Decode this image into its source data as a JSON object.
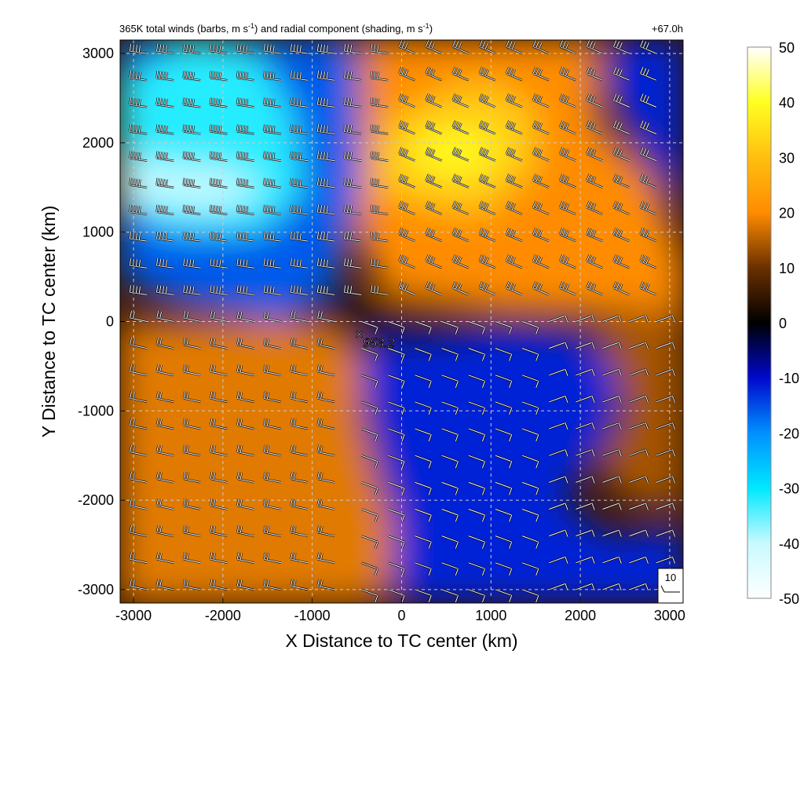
{
  "chart_data": {
    "type": "heatmap",
    "title_main": "365K total winds (barbs, m s",
    "title_sup1": "-1",
    "title_mid": ") and radial component (shading, m s",
    "title_sup2": "-1",
    "title_end": ")",
    "time_label": "+67.0h",
    "xlabel": "X Distance to TC center (km)",
    "ylabel": "Y Distance to TC center (km)",
    "xlim": [
      -3150,
      3150
    ],
    "ylim": [
      -3150,
      3150
    ],
    "xticks": [
      -3000,
      -2000,
      -1000,
      0,
      1000,
      2000,
      3000
    ],
    "yticks": [
      -3000,
      -2000,
      -1000,
      0,
      1000,
      2000,
      3000
    ],
    "grid": true,
    "colorbar": {
      "ticks": [
        50,
        40,
        30,
        20,
        10,
        0,
        -10,
        -20,
        -30,
        -40,
        -50
      ],
      "range": [
        -50,
        50
      ],
      "colors": {
        "-50": "#ffffff",
        "-40": "#c8faff",
        "-30": "#00e8ff",
        "-20": "#0090ff",
        "-10": "#0008cc",
        "0": "#000000",
        "10": "#6b3000",
        "20": "#ff8c00",
        "30": "#ffbf10",
        "40": "#ffff20",
        "50": "#ffffff"
      }
    },
    "center_marker": {
      "x": -450,
      "y": -180,
      "label": "953.2"
    },
    "reference_barb": {
      "label": "10"
    },
    "regions": [
      {
        "name": "northwest-inflow",
        "value": -30,
        "x": -2400,
        "y": 2000
      },
      {
        "name": "northeast-outflow",
        "value": 30,
        "x": 700,
        "y": 2000
      },
      {
        "name": "southwest-outflow",
        "value": 18,
        "x": -2000,
        "y": -1300
      },
      {
        "name": "southeast-inflow",
        "value": -12,
        "x": 800,
        "y": -1300
      },
      {
        "name": "east-outflow-tongue",
        "value": 15,
        "x": 2600,
        "y": -1000
      },
      {
        "name": "northeast-corner-inflow",
        "value": -12,
        "x": 2900,
        "y": 2600
      }
    ]
  }
}
